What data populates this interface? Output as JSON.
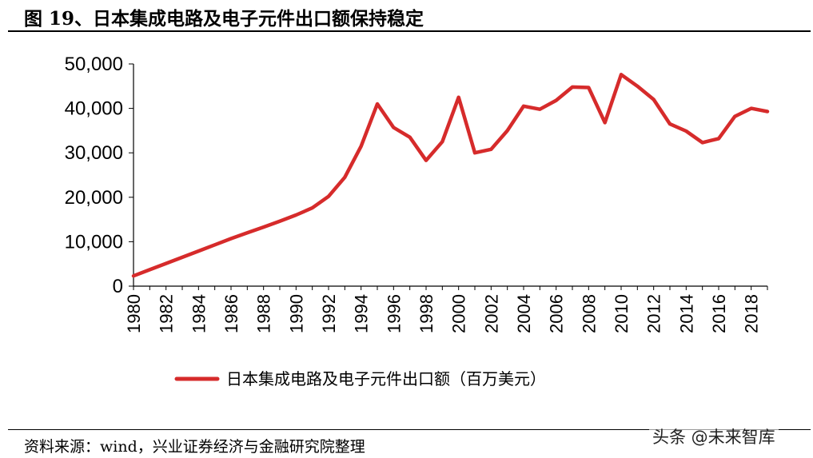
{
  "figure": {
    "title": "图 19、日本集成电路及电子元件出口额保持稳定",
    "source": "资料来源：wind，兴业证券经济与金融研究院整理",
    "watermark": "头条 @未来智库"
  },
  "chart_data": {
    "type": "line",
    "title": "",
    "xlabel": "",
    "ylabel": "",
    "xlim": [
      1980,
      2019
    ],
    "ylim": [
      0,
      50000
    ],
    "yticks": [
      0,
      10000,
      20000,
      30000,
      40000,
      50000
    ],
    "ytick_labels": [
      "0",
      "10,000",
      "20,000",
      "30,000",
      "40,000",
      "50,000"
    ],
    "xticks": [
      1980,
      1982,
      1984,
      1986,
      1988,
      1990,
      1992,
      1994,
      1996,
      1998,
      2000,
      2002,
      2004,
      2006,
      2008,
      2010,
      2012,
      2014,
      2016,
      2018
    ],
    "grid": false,
    "legend_position": "bottom",
    "x": [
      1980,
      1981,
      1982,
      1983,
      1984,
      1985,
      1986,
      1987,
      1988,
      1989,
      1990,
      1991,
      1992,
      1993,
      1994,
      1995,
      1996,
      1997,
      1998,
      1999,
      2000,
      2001,
      2002,
      2003,
      2004,
      2005,
      2006,
      2007,
      2008,
      2009,
      2010,
      2011,
      2012,
      2013,
      2014,
      2015,
      2016,
      2017,
      2018,
      2019
    ],
    "series": [
      {
        "name": "日本集成电路及电子元件出口额（百万美元）",
        "color": "#d62b2b",
        "values": [
          2300,
          3700,
          5100,
          6500,
          7900,
          9300,
          10700,
          12000,
          13300,
          14600,
          16000,
          17600,
          20200,
          24500,
          31500,
          41000,
          35700,
          33500,
          28300,
          32500,
          42500,
          30000,
          30800,
          35000,
          40500,
          39800,
          41800,
          44800,
          44700,
          36800,
          47600,
          45000,
          42000,
          36500,
          34900,
          32300,
          33200,
          38200,
          40000,
          39300
        ]
      }
    ]
  }
}
